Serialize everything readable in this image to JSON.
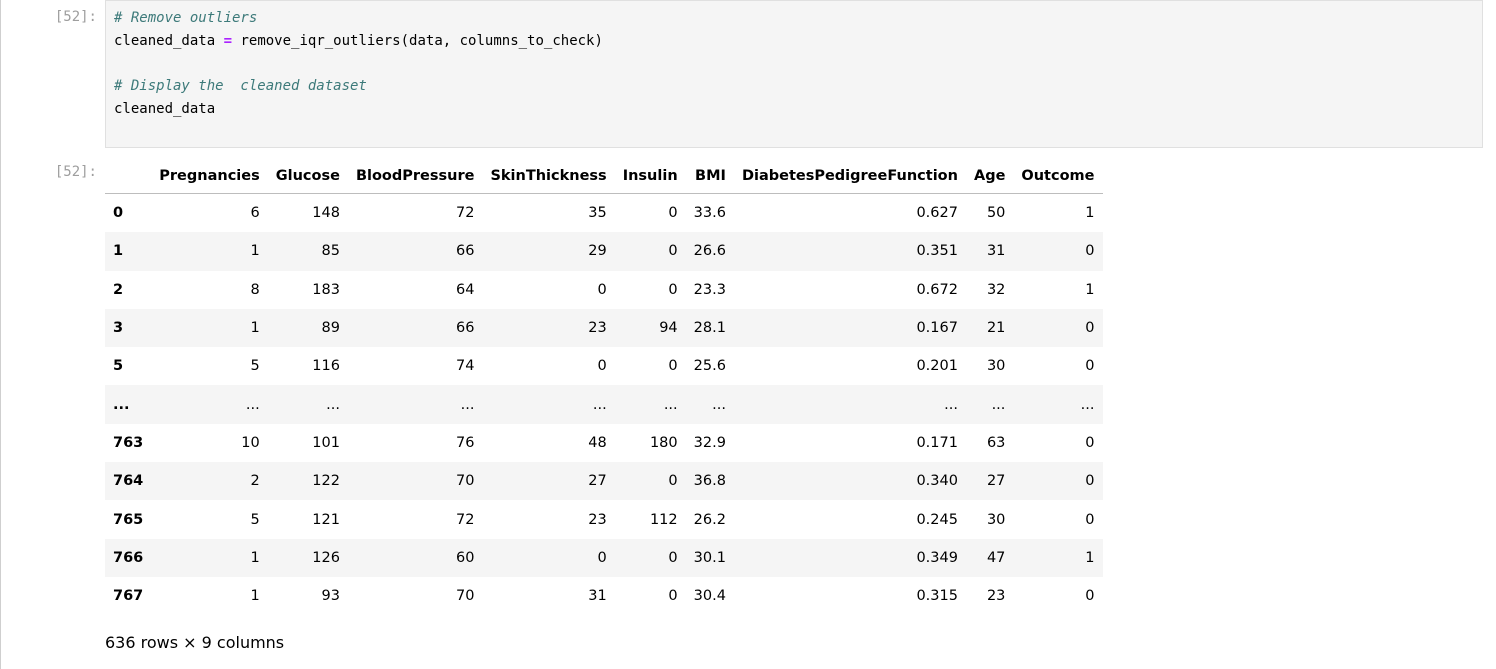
{
  "input_cell": {
    "prompt": "[52]:",
    "lines": [
      {
        "type": "comment",
        "text": "# Remove outliers"
      },
      {
        "type": "assign",
        "target": "cleaned_data",
        "op": "=",
        "expr": "remove_iqr_outliers(data, columns_to_check)"
      },
      {
        "type": "blank",
        "text": ""
      },
      {
        "type": "comment",
        "text": "# Display the  cleaned dataset"
      },
      {
        "type": "code",
        "text": "cleaned_data"
      }
    ]
  },
  "output_cell": {
    "prompt": "[52]:",
    "table": {
      "columns": [
        "",
        "Pregnancies",
        "Glucose",
        "BloodPressure",
        "SkinThickness",
        "Insulin",
        "BMI",
        "DiabetesPedigreeFunction",
        "Age",
        "Outcome"
      ],
      "rows": [
        [
          "0",
          "6",
          "148",
          "72",
          "35",
          "0",
          "33.6",
          "0.627",
          "50",
          "1"
        ],
        [
          "1",
          "1",
          "85",
          "66",
          "29",
          "0",
          "26.6",
          "0.351",
          "31",
          "0"
        ],
        [
          "2",
          "8",
          "183",
          "64",
          "0",
          "0",
          "23.3",
          "0.672",
          "32",
          "1"
        ],
        [
          "3",
          "1",
          "89",
          "66",
          "23",
          "94",
          "28.1",
          "0.167",
          "21",
          "0"
        ],
        [
          "5",
          "5",
          "116",
          "74",
          "0",
          "0",
          "25.6",
          "0.201",
          "30",
          "0"
        ],
        [
          "...",
          "...",
          "...",
          "...",
          "...",
          "...",
          "...",
          "...",
          "...",
          "..."
        ],
        [
          "763",
          "10",
          "101",
          "76",
          "48",
          "180",
          "32.9",
          "0.171",
          "63",
          "0"
        ],
        [
          "764",
          "2",
          "122",
          "70",
          "27",
          "0",
          "36.8",
          "0.340",
          "27",
          "0"
        ],
        [
          "765",
          "5",
          "121",
          "72",
          "23",
          "112",
          "26.2",
          "0.245",
          "30",
          "0"
        ],
        [
          "766",
          "1",
          "126",
          "60",
          "0",
          "0",
          "30.1",
          "0.349",
          "47",
          "1"
        ],
        [
          "767",
          "1",
          "93",
          "70",
          "31",
          "0",
          "30.4",
          "0.315",
          "23",
          "0"
        ]
      ]
    },
    "shape_text": "636 rows × 9 columns"
  }
}
